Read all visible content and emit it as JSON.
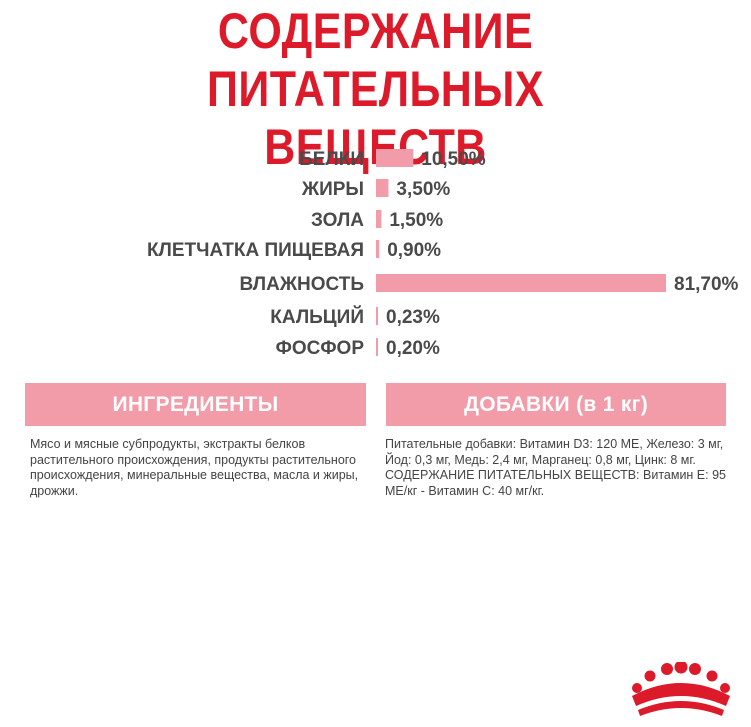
{
  "header": {
    "title_line1": "СОДЕРЖАНИЕ ПИТАТЕЛЬНЫХ",
    "title_line2": "ВЕЩЕСТВ"
  },
  "chart_data": {
    "type": "bar",
    "orientation": "horizontal",
    "categories": [
      "БЕЛКИ",
      "ЖИРЫ",
      "ЗОЛА",
      "КЛЕТЧАТКА ПИЩЕВАЯ",
      "ВЛАЖНОСТЬ",
      "КАЛЬЦИЙ",
      "ФОСФОР"
    ],
    "values": [
      10.5,
      3.5,
      1.5,
      0.9,
      81.7,
      0.23,
      0.2
    ],
    "value_labels": [
      "10,50%",
      "3,50%",
      "1,50%",
      "0,90%",
      "81,70%",
      "0,23%",
      "0,20%"
    ],
    "unit": "%",
    "bar_color": "#f29ca9",
    "grid": false
  },
  "ingredients": {
    "heading": "ИНГРЕДИЕНТЫ",
    "text": "Мясо и мясные субпродукты, экстракты белков растительного происхождения, продукты растительного происхождения, минеральные вещества, масла и жиры, дрожжи."
  },
  "additives": {
    "heading": "ДОБАВКИ (в 1 кг)",
    "text": "Питательные добавки: Витамин D3: 120 МЕ, Железо: 3 мг, Йод: 0,3 мг, Медь: 2,4 мг, Марганец: 0,8 мг, Цинк: 8 мг. СОДЕРЖАНИЕ ПИТАТЕЛЬНЫХ ВЕЩЕСТВ: Витамин Е: 95 МЕ/кг - Витамин С: 40 мг/кг."
  },
  "colors": {
    "title": "#dd1a2a",
    "accent": "#f29ca9",
    "logo": "#dd1a2a"
  },
  "logo": {
    "icon": "crown-icon"
  }
}
